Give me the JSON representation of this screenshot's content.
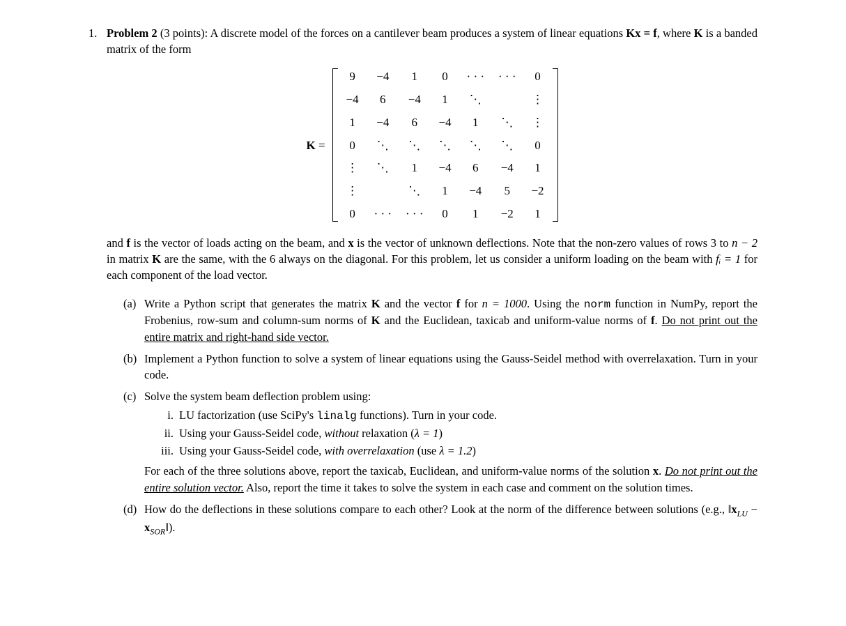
{
  "problem": {
    "number": "1.",
    "title_bold": "Problem 2",
    "points": " (3 points): ",
    "intro_1": "A discrete model of the forces on a cantilever beam produces a system of linear equations ",
    "intro_eq": "Kx = f",
    "intro_2": ", where ",
    "intro_K": "K",
    "intro_3": " is a banded matrix of the form"
  },
  "matrix": {
    "label_K": "K",
    "label_eq": " = ",
    "rows": [
      [
        "9",
        "−4",
        "1",
        "0",
        "· · ·",
        "· · ·",
        "0"
      ],
      [
        "−4",
        "6",
        "−4",
        "1",
        "⋱",
        "",
        "⋮"
      ],
      [
        "1",
        "−4",
        "6",
        "−4",
        "1",
        "⋱",
        "⋮"
      ],
      [
        "0",
        "⋱",
        "⋱",
        "⋱",
        "⋱",
        "⋱",
        "0"
      ],
      [
        "⋮",
        "⋱",
        "1",
        "−4",
        "6",
        "−4",
        "1"
      ],
      [
        "⋮",
        "",
        "⋱",
        "1",
        "−4",
        "5",
        "−2"
      ],
      [
        "0",
        "· · ·",
        "· · ·",
        "0",
        "1",
        "−2",
        "1"
      ]
    ]
  },
  "continuation": {
    "text_1": "and ",
    "f": "f",
    "text_2": " is the vector of loads acting on the beam, and ",
    "x": "x",
    "text_3": " is the vector of unknown deflections. Note that the non-zero values of rows 3 to ",
    "n_minus_2": "n − 2",
    "text_4": " in matrix ",
    "K": "K",
    "text_5": " are the same, with the 6 always on the diagonal. For this problem, let us consider a uniform loading on the beam with ",
    "fi_eq": "fᵢ = 1",
    "text_6": " for each component of the load vector."
  },
  "parts": {
    "a": {
      "label": "(a)",
      "t1": "Write a Python script that generates the matrix ",
      "K": "K",
      "t2": " and the vector ",
      "f": "f",
      "t3": " for ",
      "n_eq": "n = 1000",
      "t4": ". Using the ",
      "norm": "norm",
      "t5": " function in NumPy, report the Frobenius, row-sum and column-sum norms of ",
      "K2": "K",
      "t6": " and the Euclidean, taxicab and uniform-value norms of ",
      "f2": "f",
      "t7": ". ",
      "underline": "Do not print out the entire matrix and right-hand side vector.",
      "t8": ""
    },
    "b": {
      "label": "(b)",
      "text": "Implement a Python function to solve a system of linear equations using the Gauss-Seidel method with overrelaxation. Turn in your code."
    },
    "c": {
      "label": "(c)",
      "text": "Solve the system beam deflection problem using:",
      "i": {
        "label": "i.",
        "t1": "LU factorization (use SciPy's ",
        "linalg": "linalg",
        "t2": " functions). Turn in your code."
      },
      "ii": {
        "label": "ii.",
        "t1": "Using your Gauss-Seidel code, ",
        "without": "without",
        "t2": " relaxation (",
        "lambda": "λ = 1",
        "t3": ")"
      },
      "iii": {
        "label": "iii.",
        "t1": "Using your Gauss-Seidel code, ",
        "with_over": "with overrelaxation",
        "t2": " (use ",
        "lambda": "λ = 1.2",
        "t3": ")"
      },
      "after_t1": "For each of the three solutions above, report the taxicab, Euclidean, and uniform-value norms of the solution ",
      "after_x": "x",
      "after_t2": ". ",
      "after_underline": "Do not print out the entire solution vector.",
      "after_t3": " Also, report the time it takes to solve the system in each case and comment on the solution times."
    },
    "d": {
      "label": "(d)",
      "t1": "How do the deflections in these solutions compare to each other? Look at the norm of the difference between solutions (e.g., ",
      "norm_expr_open": "‖",
      "xLU": "x",
      "LU": "LU",
      "minus": " − ",
      "xSOR": "x",
      "SOR": "SOR",
      "norm_expr_close": "‖",
      "t2": ")."
    }
  }
}
